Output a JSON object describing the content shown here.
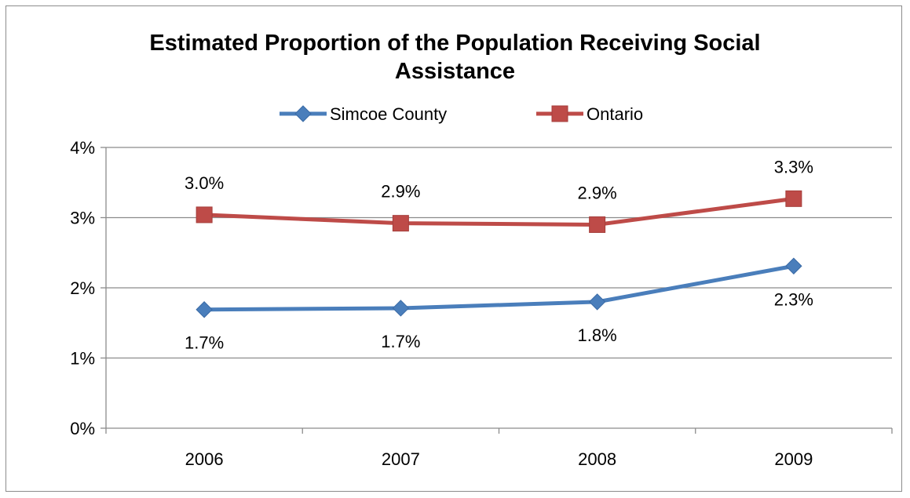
{
  "chart_data": {
    "type": "line",
    "title_lines": [
      "Estimated Proportion of the Population Receiving Social",
      "Assistance"
    ],
    "categories": [
      "2006",
      "2007",
      "2008",
      "2009"
    ],
    "ylim": [
      0,
      0.04
    ],
    "yticks": [
      0,
      0.01,
      0.02,
      0.03,
      0.04
    ],
    "ytick_labels": [
      "0%",
      "1%",
      "2%",
      "3%",
      "4%"
    ],
    "grid": true,
    "legend_position": "top",
    "series": [
      {
        "name": "Simcoe County",
        "marker": "diamond",
        "color": "#4a7ebb",
        "label_position": "below",
        "values": [
          0.0169,
          0.0171,
          0.018,
          0.0231
        ],
        "labels": [
          "1.7%",
          "1.7%",
          "1.8%",
          "2.3%"
        ]
      },
      {
        "name": "Ontario",
        "marker": "square",
        "color": "#be4b48",
        "label_position": "above",
        "values": [
          0.0304,
          0.0292,
          0.029,
          0.0327
        ],
        "labels": [
          "3.0%",
          "2.9%",
          "2.9%",
          "3.3%"
        ]
      }
    ]
  }
}
